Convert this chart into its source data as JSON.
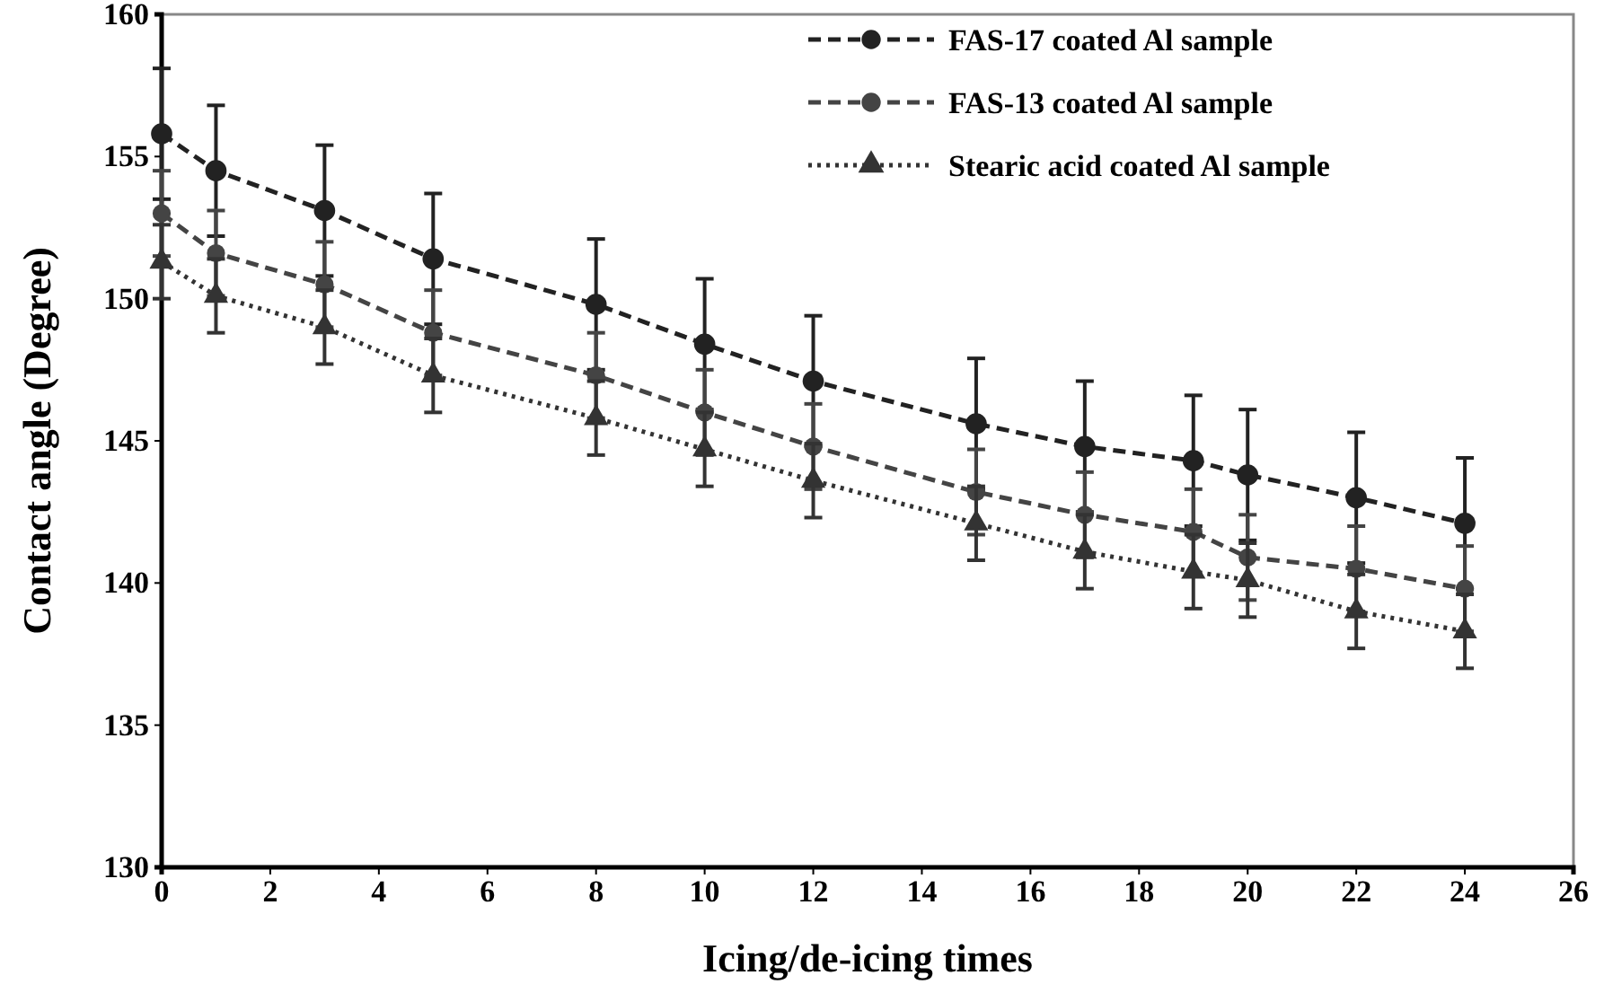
{
  "chart_data": {
    "type": "line",
    "xlabel": "Icing/de-icing times",
    "ylabel": "Contact angle (Degree)",
    "xlim": [
      0,
      26
    ],
    "xticks": [
      0,
      2,
      4,
      6,
      8,
      10,
      12,
      14,
      16,
      18,
      20,
      22,
      24,
      26
    ],
    "ylim": [
      130,
      160
    ],
    "yticks": [
      130,
      135,
      140,
      145,
      150,
      155,
      160
    ],
    "grid": false,
    "legend": "top right",
    "series": [
      {
        "name": "FAS-17 coated Al sample",
        "color": "#222222",
        "marker": "circle",
        "line_style": "dashed",
        "x": [
          0,
          1,
          3,
          5,
          8,
          10,
          12,
          15,
          17,
          19,
          20,
          22,
          24
        ],
        "values": [
          155.8,
          154.5,
          153.1,
          151.4,
          149.8,
          148.4,
          147.1,
          145.6,
          144.8,
          144.3,
          143.8,
          143,
          142.1
        ],
        "errors": [
          2.3,
          2.3,
          2.3,
          2.3,
          2.3,
          2.3,
          2.3,
          2.3,
          2.3,
          2.3,
          2.3,
          2.3,
          2.3
        ]
      },
      {
        "name": "FAS-13 coated Al sample",
        "color": "#444444",
        "marker": "circle",
        "line_style": "dashed",
        "x": [
          0,
          1,
          3,
          5,
          8,
          10,
          12,
          15,
          17,
          19,
          20,
          22,
          24
        ],
        "values": [
          153,
          151.6,
          150.5,
          148.8,
          147.3,
          146,
          144.8,
          143.2,
          142.4,
          141.8,
          140.9,
          140.5,
          139.8
        ],
        "errors": [
          1.5,
          1.5,
          1.5,
          1.5,
          1.5,
          1.5,
          1.5,
          1.5,
          1.5,
          1.5,
          1.5,
          1.5,
          1.5
        ]
      },
      {
        "name": "Stearic acid coated Al sample",
        "color": "#333333",
        "marker": "triangle",
        "line_style": "dotted",
        "x": [
          0,
          1,
          3,
          5,
          8,
          10,
          12,
          15,
          17,
          19,
          20,
          22,
          24
        ],
        "values": [
          151.3,
          150.1,
          149,
          147.3,
          145.8,
          144.7,
          143.6,
          142.1,
          141.1,
          140.4,
          140.1,
          139,
          138.3
        ],
        "errors": [
          1.3,
          1.3,
          1.3,
          1.3,
          1.3,
          1.3,
          1.3,
          1.3,
          1.3,
          1.3,
          1.3,
          1.3,
          1.3
        ]
      }
    ]
  }
}
